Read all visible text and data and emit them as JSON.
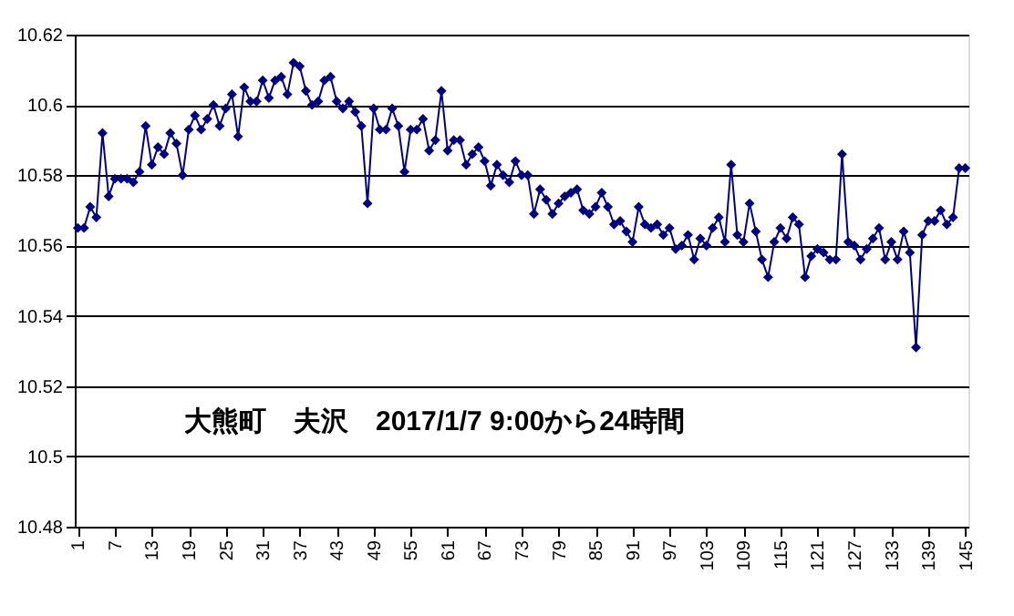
{
  "chart_data": {
    "type": "line",
    "categories": [
      "1",
      null,
      null,
      null,
      null,
      null,
      "7",
      null,
      null,
      null,
      null,
      null,
      "13",
      null,
      null,
      null,
      null,
      null,
      "19",
      null,
      null,
      null,
      null,
      null,
      "25",
      null,
      null,
      null,
      null,
      null,
      "31",
      null,
      null,
      null,
      null,
      null,
      "37",
      null,
      null,
      null,
      null,
      null,
      "43",
      null,
      null,
      null,
      null,
      null,
      "49",
      null,
      null,
      null,
      null,
      null,
      "55",
      null,
      null,
      null,
      null,
      null,
      "61",
      null,
      null,
      null,
      null,
      null,
      "67",
      null,
      null,
      null,
      null,
      null,
      "73",
      null,
      null,
      null,
      null,
      null,
      "79",
      null,
      null,
      null,
      null,
      null,
      "85",
      null,
      null,
      null,
      null,
      null,
      "91",
      null,
      null,
      null,
      null,
      null,
      "97",
      null,
      null,
      null,
      null,
      null,
      "103",
      null,
      null,
      null,
      null,
      null,
      "109",
      null,
      null,
      null,
      null,
      null,
      "115",
      null,
      null,
      null,
      null,
      null,
      "121",
      null,
      null,
      null,
      null,
      null,
      "127",
      null,
      null,
      null,
      null,
      null,
      "133",
      null,
      null,
      null,
      null,
      null,
      "139",
      null,
      null,
      null,
      null,
      null,
      "145"
    ],
    "series": [
      {
        "color": "#000080",
        "values": [
          10.565,
          10.565,
          10.571,
          10.568,
          10.592,
          10.574,
          10.579,
          10.579,
          10.579,
          10.578,
          10.581,
          10.594,
          10.583,
          10.588,
          10.586,
          10.592,
          10.589,
          10.58,
          10.593,
          10.597,
          10.593,
          10.596,
          10.6,
          10.594,
          10.599,
          10.603,
          10.591,
          10.605,
          10.601,
          10.601,
          10.607,
          10.602,
          10.607,
          10.608,
          10.603,
          10.612,
          10.611,
          10.604,
          10.6,
          10.601,
          10.607,
          10.608,
          10.601,
          10.599,
          10.601,
          10.598,
          10.594,
          10.572,
          10.599,
          10.593,
          10.593,
          10.599,
          10.594,
          10.581,
          10.593,
          10.593,
          10.596,
          10.587,
          10.59,
          10.604,
          10.587,
          10.59,
          10.59,
          10.583,
          10.586,
          10.588,
          10.584,
          10.577,
          10.583,
          10.58,
          10.578,
          10.584,
          10.58,
          10.58,
          10.569,
          10.576,
          10.573,
          10.569,
          10.572,
          10.574,
          10.575,
          10.576,
          10.57,
          10.569,
          10.571,
          10.575,
          10.571,
          10.566,
          10.567,
          10.564,
          10.561,
          10.571,
          10.566,
          10.565,
          10.566,
          10.563,
          10.565,
          10.559,
          10.56,
          10.563,
          10.556,
          10.562,
          10.56,
          10.565,
          10.568,
          10.561,
          10.583,
          10.563,
          10.561,
          10.572,
          10.564,
          10.556,
          10.551,
          10.561,
          10.565,
          10.562,
          10.568,
          10.566,
          10.551,
          10.557,
          10.559,
          10.558,
          10.556,
          10.556,
          10.586,
          10.561,
          10.56,
          10.556,
          10.559,
          10.562,
          10.565,
          10.556,
          10.561,
          10.556,
          10.564,
          10.558,
          10.531,
          10.563,
          10.567,
          10.567,
          10.57,
          10.566,
          10.568,
          10.582,
          10.582
        ]
      }
    ],
    "ylim": [
      10.48,
      10.62
    ],
    "yticks": [
      10.48,
      10.5,
      10.52,
      10.54,
      10.56,
      10.58,
      10.6,
      10.62
    ],
    "grid": "y",
    "marker": "diamond",
    "line_style": "solid",
    "annotations": [
      "大熊町　夫沢　2017/1/7 9:00から24時間"
    ]
  }
}
